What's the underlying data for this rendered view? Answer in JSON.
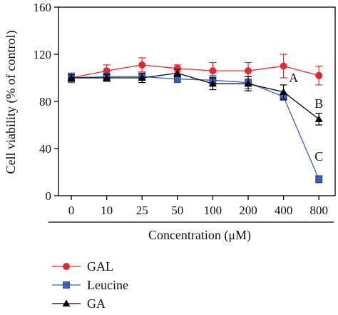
{
  "chart_data": {
    "type": "line",
    "title": "",
    "xlabel": "Concentration (μM)",
    "ylabel": "Cell viability (% of control)",
    "categories": [
      "0",
      "10",
      "25",
      "50",
      "100",
      "200",
      "400",
      "800"
    ],
    "ylim": [
      0,
      160
    ],
    "yticks": [
      0,
      40,
      80,
      120,
      160
    ],
    "grid": false,
    "legend": "bottom-left",
    "series": [
      {
        "name": "GAL",
        "color": "#e8262b",
        "marker": "circle",
        "values": [
          100,
          106,
          111,
          108,
          106,
          106,
          110,
          102
        ],
        "errors": [
          4,
          5,
          6,
          3,
          7,
          7,
          10,
          8
        ]
      },
      {
        "name": "Leucine",
        "color": "#3a5fc1",
        "marker": "square",
        "values": [
          100,
          101,
          101,
          99,
          98,
          96,
          84,
          14
        ],
        "errors": [
          4,
          3,
          3,
          3,
          4,
          5,
          3,
          3
        ]
      },
      {
        "name": "GA",
        "color": "#000000",
        "marker": "triangle",
        "values": [
          100,
          100,
          100,
          104,
          95,
          95,
          88,
          65
        ],
        "errors": [
          3,
          3,
          4,
          3,
          5,
          6,
          6,
          5
        ]
      }
    ],
    "annotations": [
      {
        "text": "A",
        "category": "800",
        "near_series": "GA",
        "at_index": 6
      },
      {
        "text": "B",
        "category": "800",
        "near_series": "GA",
        "at_index": 7
      },
      {
        "text": "C",
        "category": "800",
        "near_series": "Leucine",
        "at_index": 7
      }
    ]
  }
}
